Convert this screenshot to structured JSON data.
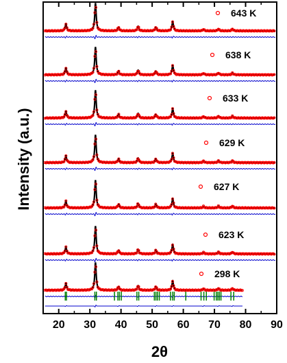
{
  "chart_data": {
    "type": "line",
    "title": "",
    "xlabel": "2θ",
    "ylabel": "Intensity (a.u.)",
    "xlim": [
      15,
      90
    ],
    "x_ticks": [
      20,
      30,
      40,
      50,
      60,
      70,
      80,
      90
    ],
    "y_ticks": "none",
    "legend_marker": "open red circle (observed)",
    "peak_positions_2theta": [
      22.3,
      31.8,
      39.2,
      45.5,
      51.2,
      56.6,
      66.5,
      71.3,
      75.8
    ],
    "peak_relative_intensity": [
      0.22,
      0.9,
      0.12,
      0.15,
      0.12,
      0.3,
      0.05,
      0.06,
      0.06
    ],
    "reflection_ticks_2theta": [
      22.1,
      22.5,
      31.6,
      32.1,
      37.9,
      39.0,
      39.5,
      40.1,
      45.1,
      45.7,
      50.7,
      51.2,
      51.7,
      52.3,
      55.9,
      56.6,
      57.1,
      60.8,
      65.7,
      66.6,
      67.4,
      69.9,
      70.6,
      71.1,
      71.6,
      72.1,
      75.3,
      76.2
    ],
    "temperatures": [
      "643 K",
      "638 K",
      "633 K",
      "629 K",
      "627 K",
      "623 K",
      "298 K"
    ],
    "series_colors": {
      "observed": "#ff0000",
      "calculated": "#000000",
      "difference": "#0000cc",
      "bragg_positions": "#008000"
    }
  }
}
